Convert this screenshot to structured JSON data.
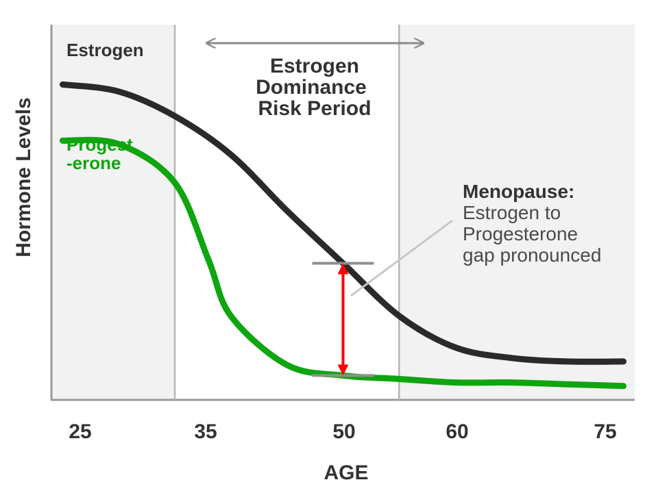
{
  "chart_data": {
    "type": "line",
    "xlabel": "AGE",
    "ylabel": "Hormone Levels",
    "x_ticks": [
      "25",
      "35",
      "50",
      "60",
      "75"
    ],
    "xlim": [
      24,
      76
    ],
    "ylim": [
      0,
      100
    ],
    "grid": false,
    "series": [
      {
        "name": "Estrogen",
        "color": "#2a2a2a",
        "points": [
          [
            25,
            88
          ],
          [
            30,
            86
          ],
          [
            35,
            79
          ],
          [
            40,
            68
          ],
          [
            45,
            52
          ],
          [
            50,
            37
          ],
          [
            55,
            22
          ],
          [
            60,
            13
          ],
          [
            65,
            10
          ],
          [
            70,
            9
          ],
          [
            75,
            9
          ]
        ]
      },
      {
        "name": "Progest\n-erone",
        "label_lines": [
          "Progest",
          "-erone"
        ],
        "color": "#0fa50f",
        "points": [
          [
            25,
            72
          ],
          [
            30,
            71
          ],
          [
            35,
            60
          ],
          [
            38,
            38
          ],
          [
            40,
            22
          ],
          [
            45,
            8
          ],
          [
            50,
            5
          ],
          [
            55,
            4
          ],
          [
            60,
            3
          ],
          [
            65,
            3
          ],
          [
            70,
            2.5
          ],
          [
            75,
            2
          ]
        ]
      }
    ],
    "bands": [
      {
        "x_range": [
          24,
          35
        ],
        "fill": "#f2f2f2"
      },
      {
        "x_range": [
          35,
          55
        ],
        "fill": "#ffffff",
        "label_lines": [
          "Estrogen",
          "Dominance",
          "Risk Period"
        ]
      },
      {
        "x_range": [
          55,
          76
        ],
        "fill": "#f2f2f2"
      }
    ],
    "gap_marker": {
      "x": 50,
      "upper": 37,
      "lower": 5,
      "color": "#ff0000"
    },
    "annotation": {
      "title": "Menopause:",
      "lines": [
        "Estrogen to",
        "Progesterone",
        "gap pronounced"
      ]
    }
  }
}
